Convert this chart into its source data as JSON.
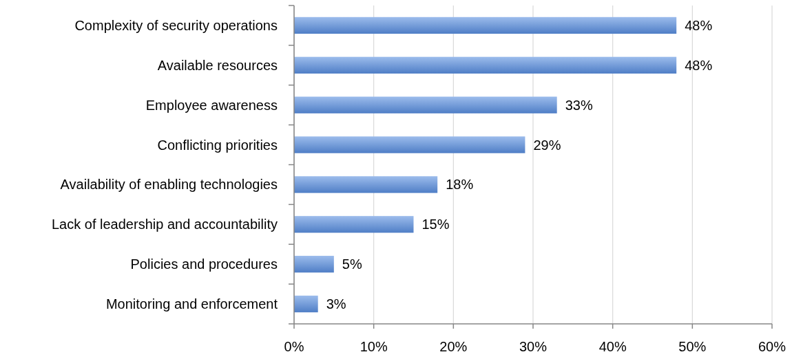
{
  "chart_data": {
    "type": "bar",
    "orientation": "horizontal",
    "categories": [
      "Complexity of security operations",
      "Available resources",
      "Employee awareness",
      "Conflicting priorities",
      "Availability of enabling technologies",
      "Lack of leadership and accountability",
      "Policies and procedures",
      "Monitoring and enforcement"
    ],
    "values": [
      48,
      48,
      33,
      29,
      18,
      15,
      5,
      3
    ],
    "value_labels": [
      "48%",
      "48%",
      "33%",
      "29%",
      "18%",
      "15%",
      "5%",
      "3%"
    ],
    "color": "#5a8fe0",
    "xlim": [
      0,
      60
    ],
    "xticks": [
      {
        "value": 0,
        "label": "0%"
      },
      {
        "value": 10,
        "label": "10%"
      },
      {
        "value": 20,
        "label": "20%"
      },
      {
        "value": 30,
        "label": "30%"
      },
      {
        "value": 40,
        "label": "40%"
      },
      {
        "value": 50,
        "label": "50%"
      },
      {
        "value": 60,
        "label": "60%"
      }
    ],
    "grid": "x"
  }
}
